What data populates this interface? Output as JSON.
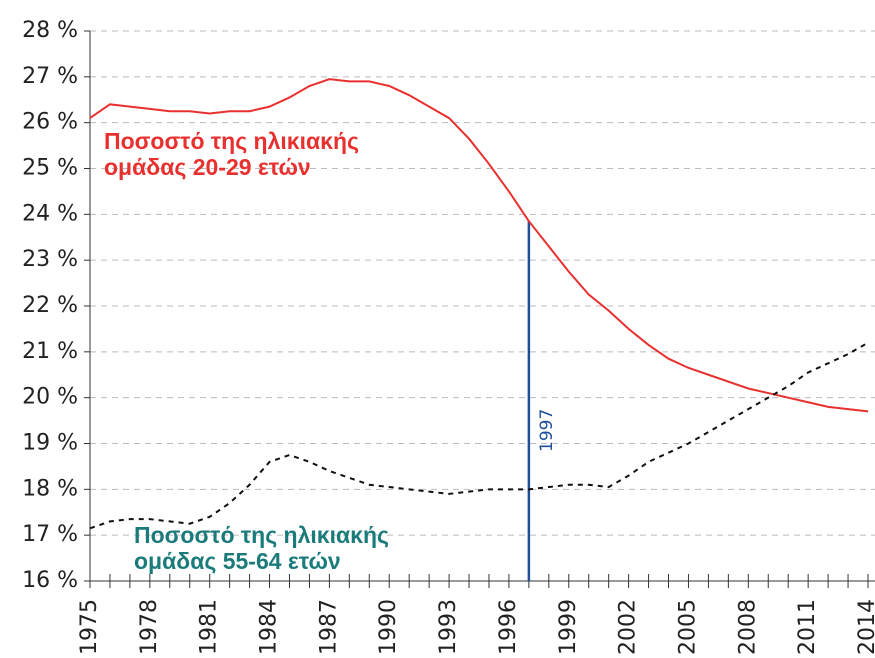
{
  "chart_data": {
    "type": "line",
    "x": [
      1975,
      1976,
      1977,
      1978,
      1979,
      1980,
      1981,
      1982,
      1983,
      1984,
      1985,
      1986,
      1987,
      1988,
      1989,
      1990,
      1991,
      1992,
      1993,
      1994,
      1995,
      1996,
      1997,
      1998,
      1999,
      2000,
      2001,
      2002,
      2003,
      2004,
      2005,
      2006,
      2007,
      2008,
      2009,
      2010,
      2011,
      2012,
      2013,
      2014
    ],
    "series": [
      {
        "name": "Ποσοστό της ηλικιακής ομάδας 20-29 ετών",
        "color": "#e8312f",
        "dash": false,
        "values": [
          26.1,
          26.4,
          26.35,
          26.3,
          26.25,
          26.25,
          26.2,
          26.25,
          26.25,
          26.35,
          26.55,
          26.8,
          26.95,
          26.9,
          26.9,
          26.8,
          26.6,
          26.35,
          26.1,
          25.65,
          25.1,
          24.5,
          23.85,
          23.3,
          22.75,
          22.25,
          21.9,
          21.5,
          21.15,
          20.85,
          20.65,
          20.5,
          20.35,
          20.2,
          20.1,
          20.0,
          19.9,
          19.8,
          19.75,
          19.7
        ]
      },
      {
        "name": "Ποσοστό της ηλικιακής ομάδας 55-64 ετών",
        "color": "#111111",
        "label_color": "#1b7b7b",
        "dash": true,
        "values": [
          17.15,
          17.3,
          17.35,
          17.35,
          17.3,
          17.25,
          17.4,
          17.7,
          18.1,
          18.6,
          18.75,
          18.6,
          18.4,
          18.25,
          18.1,
          18.05,
          18.0,
          17.95,
          17.9,
          17.95,
          18.0,
          18.0,
          18.0,
          18.05,
          18.1,
          18.1,
          18.05,
          18.3,
          18.6,
          18.8,
          19.0,
          19.25,
          19.5,
          19.75,
          20.0,
          20.25,
          20.55,
          20.75,
          20.95,
          21.2
        ]
      }
    ],
    "xlim": [
      1975,
      2014
    ],
    "xticks": [
      1975,
      1978,
      1981,
      1984,
      1987,
      1990,
      1993,
      1996,
      1999,
      2002,
      2005,
      2008,
      2011,
      2014
    ],
    "ylim": [
      16,
      28
    ],
    "yticks": [
      {
        "value": 16,
        "label": "16 %"
      },
      {
        "value": 17,
        "label": "17 %"
      },
      {
        "value": 18,
        "label": "18 %"
      },
      {
        "value": 19,
        "label": "19 %"
      },
      {
        "value": 20,
        "label": "20 %"
      },
      {
        "value": 21,
        "label": "21 %"
      },
      {
        "value": 22,
        "label": "22 %"
      },
      {
        "value": 23,
        "label": "23 %"
      },
      {
        "value": 24,
        "label": "24 %"
      },
      {
        "value": 25,
        "label": "25 %"
      },
      {
        "value": 26,
        "label": "26 %"
      },
      {
        "value": 27,
        "label": "27 %"
      },
      {
        "value": 28,
        "label": "28 %"
      }
    ],
    "grid": true,
    "vline": {
      "x": 1997,
      "label": "1997",
      "color": "#1f4e9c"
    }
  }
}
